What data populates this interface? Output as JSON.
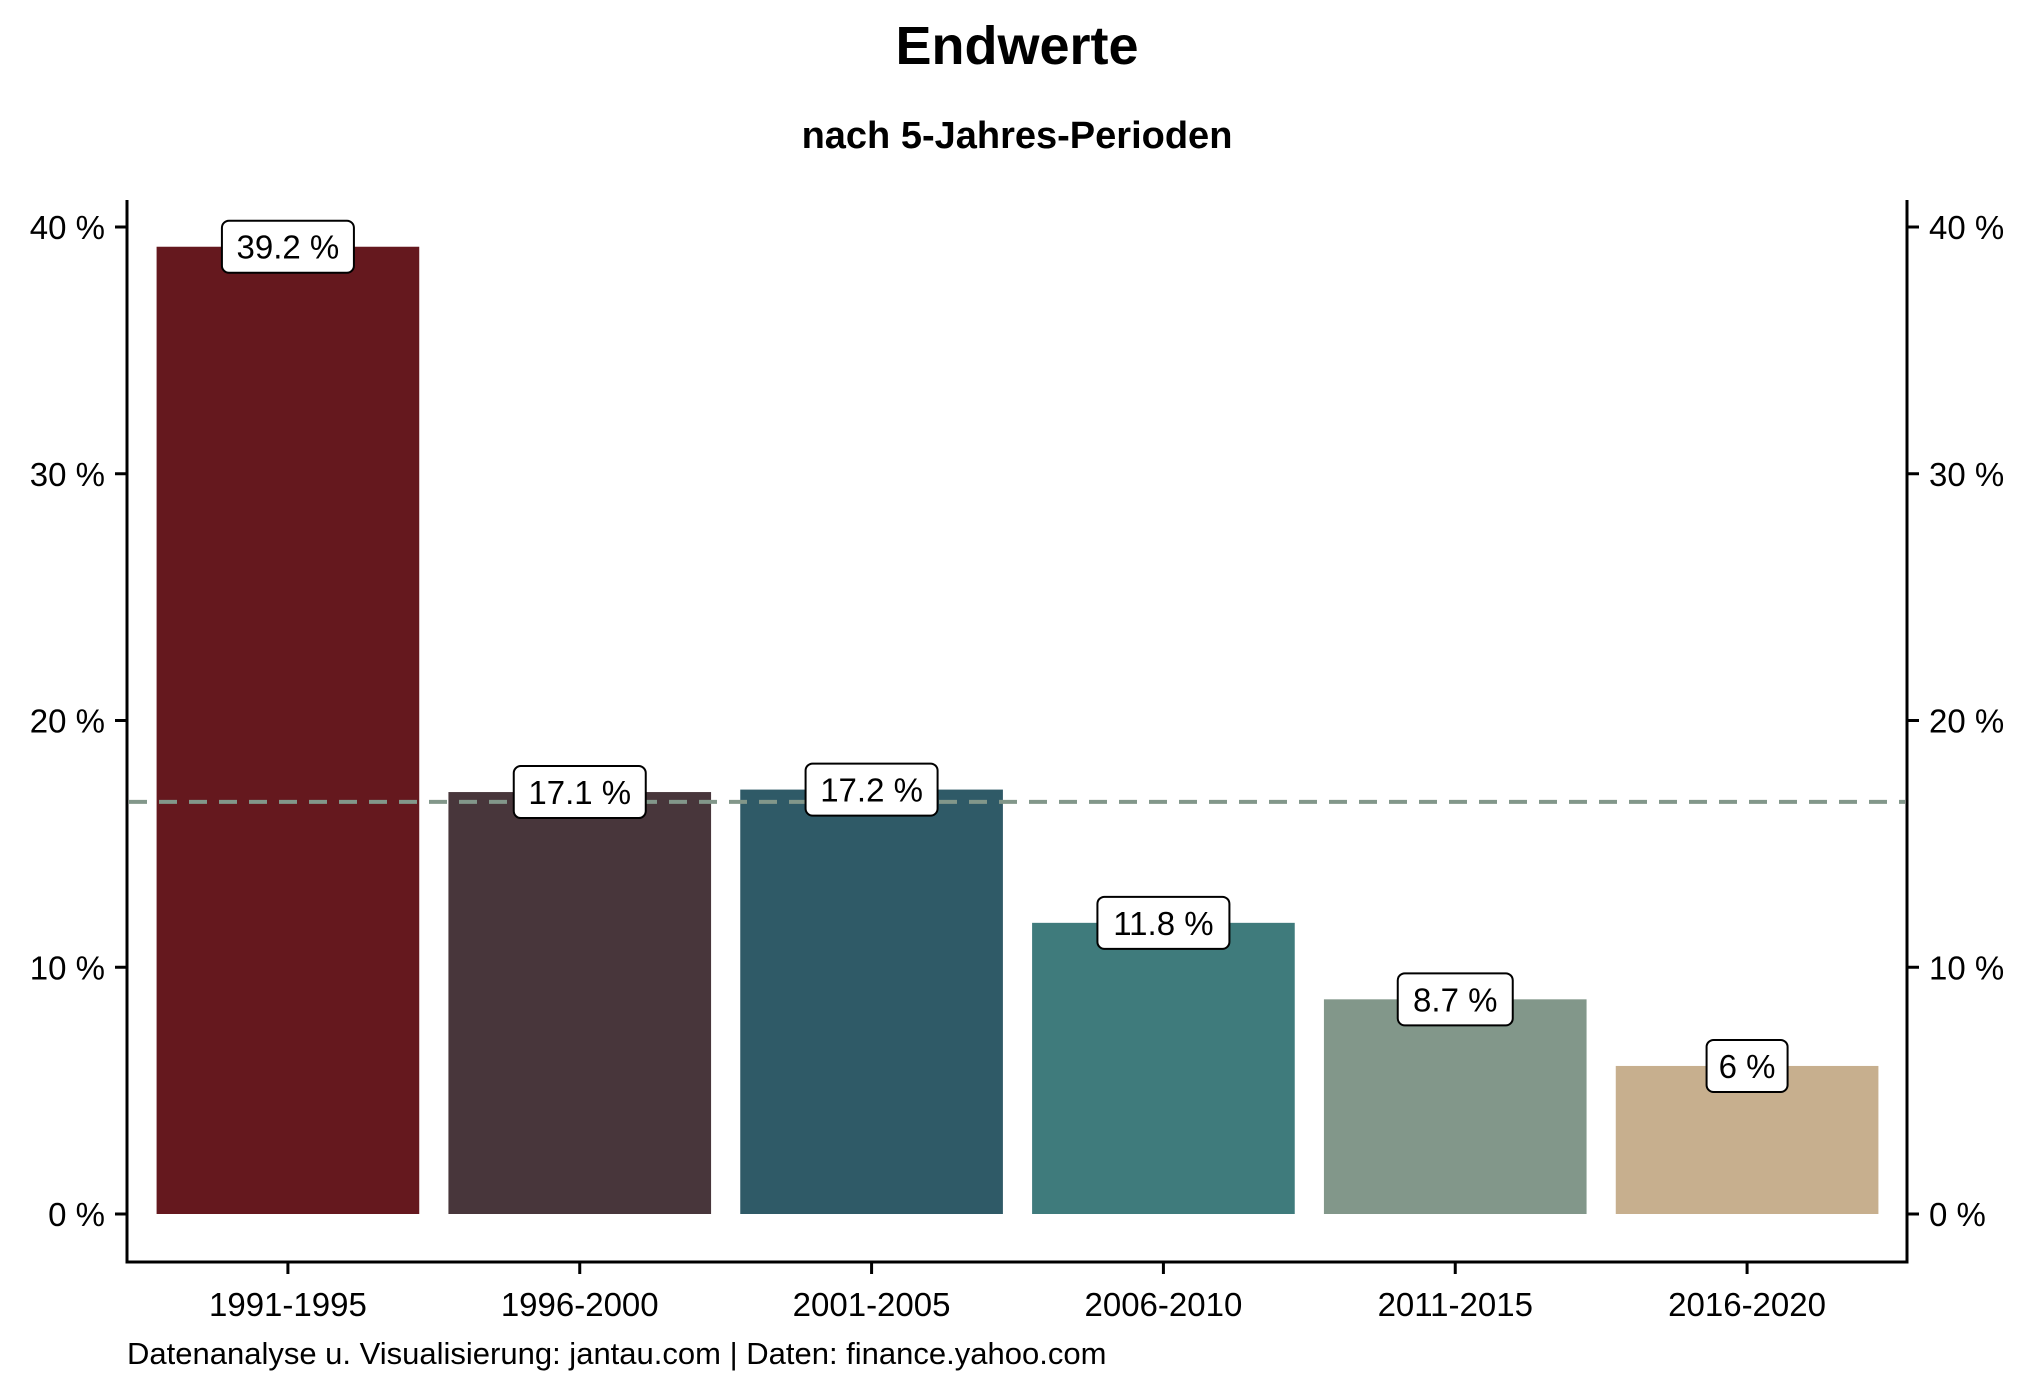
{
  "chart_data": {
    "type": "bar",
    "title": "Endwerte",
    "subtitle": "nach 5-Jahres-Perioden",
    "caption": "Datenanalyse u. Visualisierung: jantau.com | Daten: finance.yahoo.com",
    "categories": [
      "1991-1995",
      "1996-2000",
      "2001-2005",
      "2006-2010",
      "2011-2015",
      "2016-2020"
    ],
    "values": [
      39.2,
      17.1,
      17.2,
      11.8,
      8.7,
      6
    ],
    "data_labels": [
      "39.2 %",
      "17.1 %",
      "17.2 %",
      "11.8 %",
      "8.7 %",
      "6 %"
    ],
    "colors": [
      "#65181e",
      "#48363b",
      "#2f5a67",
      "#3f7b7c",
      "#82978a",
      "#c7af8e"
    ],
    "reference_line": {
      "value": 16.7,
      "color": "#82978a",
      "style": "dashed"
    },
    "ylim": [
      0,
      40
    ],
    "yticks": [
      0,
      10,
      20,
      30,
      40
    ],
    "ytick_labels": [
      "0 %",
      "10 %",
      "20 %",
      "30 %",
      "40 %"
    ],
    "secondary_y_axis": true,
    "grid": false,
    "xlabel": "",
    "ylabel": ""
  }
}
